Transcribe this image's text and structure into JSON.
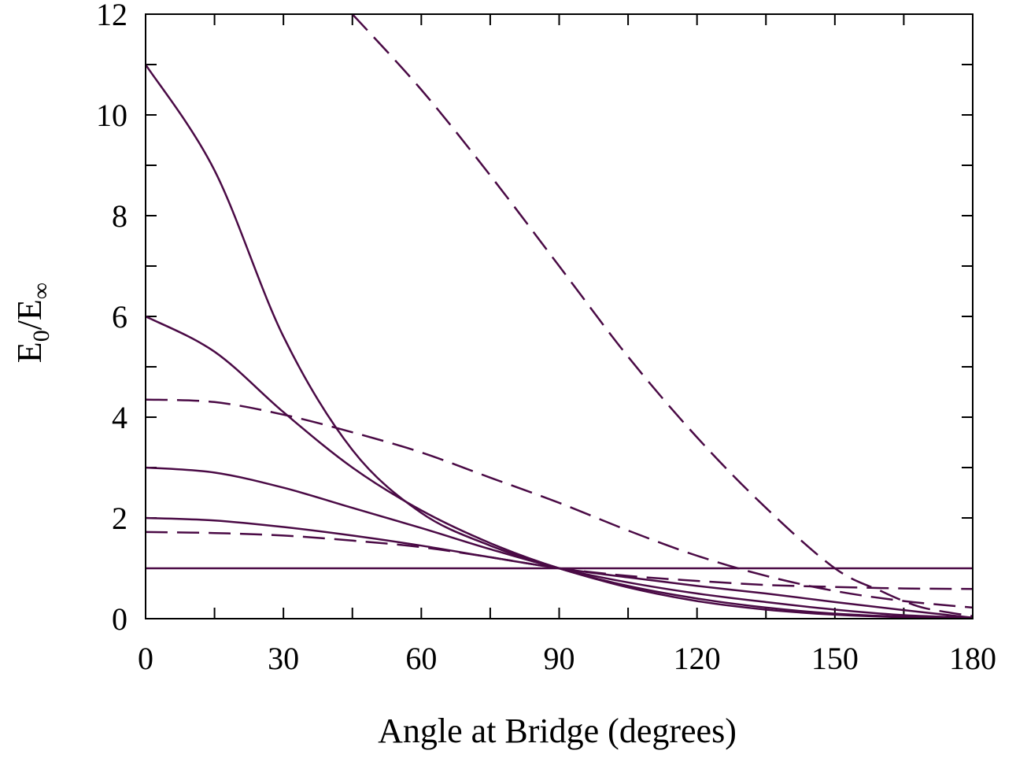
{
  "chart_data": {
    "type": "line",
    "title": "",
    "xlabel": "Angle at Bridge (degrees)",
    "ylabel": {
      "main": "E",
      "sub1": "0",
      "sep": "/E",
      "sub2": "∞"
    },
    "xlim": [
      0,
      180
    ],
    "ylim": [
      0,
      12
    ],
    "xticks": [
      0,
      30,
      60,
      90,
      120,
      150,
      180
    ],
    "yticks": [
      0,
      2,
      4,
      6,
      8,
      10,
      12
    ],
    "minor_x_step": 15,
    "minor_y_step": 1,
    "grid": false,
    "line_color": "#4a0a45",
    "series": [
      {
        "style": "solid",
        "x": [
          0,
          15,
          30,
          45,
          60,
          75,
          90,
          105,
          120,
          135,
          150,
          165,
          180
        ],
        "y": [
          11.0,
          8.9,
          5.6,
          3.35,
          2.1,
          1.45,
          1.0,
          0.62,
          0.35,
          0.18,
          0.08,
          0.03,
          0.02
        ]
      },
      {
        "style": "solid",
        "x": [
          0,
          15,
          30,
          45,
          60,
          75,
          90,
          105,
          120,
          135,
          150,
          165,
          180
        ],
        "y": [
          6.0,
          5.3,
          4.1,
          3.0,
          2.15,
          1.5,
          1.0,
          0.65,
          0.4,
          0.22,
          0.1,
          0.04,
          0.02
        ]
      },
      {
        "style": "solid",
        "x": [
          0,
          15,
          30,
          45,
          60,
          75,
          90,
          105,
          120,
          135,
          150,
          165,
          180
        ],
        "y": [
          3.0,
          2.9,
          2.6,
          2.2,
          1.8,
          1.38,
          1.0,
          0.72,
          0.5,
          0.33,
          0.18,
          0.07,
          0.02
        ]
      },
      {
        "style": "solid",
        "x": [
          0,
          15,
          30,
          45,
          60,
          75,
          90,
          105,
          120,
          135,
          150,
          165,
          180
        ],
        "y": [
          2.0,
          1.95,
          1.82,
          1.65,
          1.45,
          1.22,
          1.0,
          0.82,
          0.65,
          0.5,
          0.33,
          0.17,
          0.02
        ]
      },
      {
        "style": "solid",
        "x": [
          0,
          180
        ],
        "y": [
          1.0,
          1.0
        ]
      },
      {
        "style": "dashed",
        "x": [
          0,
          15,
          30,
          45,
          60,
          75,
          90,
          105,
          120,
          135,
          150,
          165,
          180
        ],
        "y": [
          4.35,
          4.3,
          4.05,
          3.7,
          3.3,
          2.8,
          2.3,
          1.75,
          1.25,
          0.85,
          0.55,
          0.35,
          0.22
        ]
      },
      {
        "style": "dashed",
        "x": [
          0,
          15,
          30,
          45,
          60,
          75,
          90,
          105,
          120,
          135,
          150,
          165,
          180
        ],
        "y": [
          1.72,
          1.7,
          1.65,
          1.55,
          1.42,
          1.22,
          1.0,
          0.85,
          0.75,
          0.67,
          0.63,
          0.6,
          0.59
        ]
      },
      {
        "style": "dashed",
        "x": [
          45,
          60,
          75,
          90,
          105,
          120,
          135,
          150,
          160,
          165,
          170,
          180
        ],
        "y": [
          12.0,
          10.5,
          8.8,
          7.0,
          5.2,
          3.6,
          2.2,
          1.0,
          0.55,
          0.35,
          0.2,
          0.05
        ]
      }
    ]
  }
}
